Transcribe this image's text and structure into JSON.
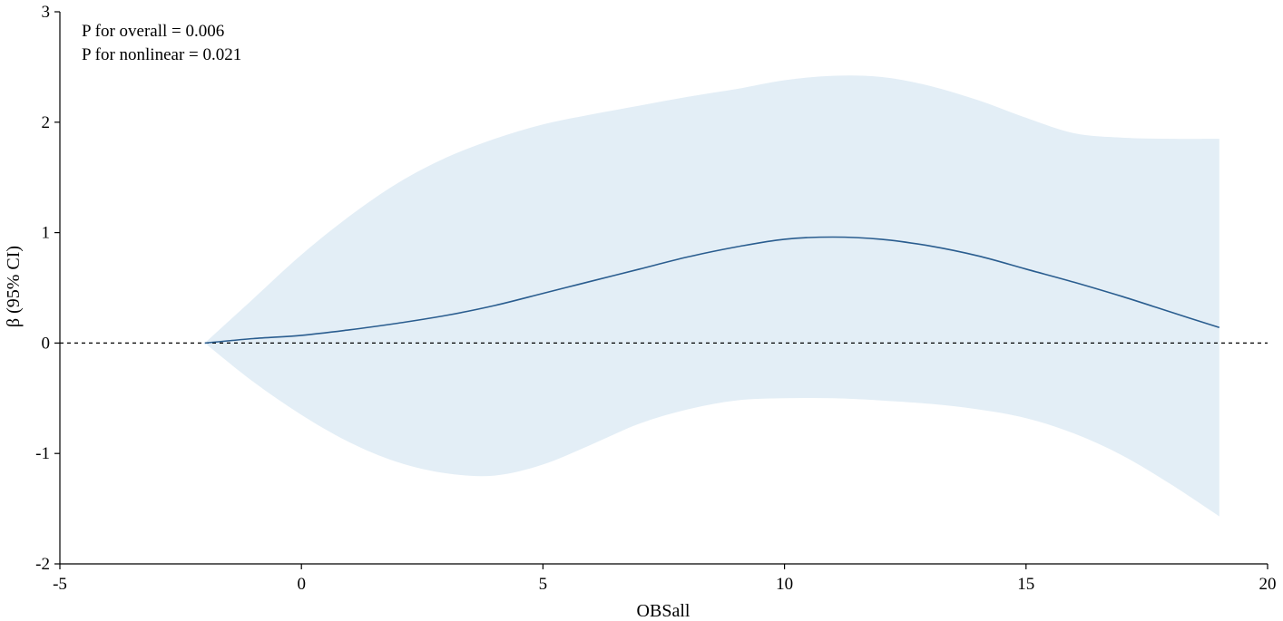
{
  "chart_data": {
    "type": "line",
    "xlabel": "OBSall",
    "ylabel": "β (95% CI)",
    "xlim": [
      -5,
      20
    ],
    "ylim": [
      -2,
      3
    ],
    "xticks": [
      -5,
      0,
      5,
      10,
      15,
      20
    ],
    "yticks": [
      -2,
      -1,
      0,
      1,
      2,
      3
    ],
    "xtick_labels": [
      "-5",
      "0",
      "5",
      "10",
      "15",
      "20"
    ],
    "ytick_labels": [
      "-2",
      "-1",
      "0",
      "1",
      "2",
      "3"
    ],
    "annotations": [
      "P for overall = 0.006",
      "P for nonlinear = 0.021"
    ],
    "reference_line": {
      "y": 0,
      "style": "dashed"
    },
    "grid": false,
    "colors": {
      "line": "#2a5d8f",
      "band": "#e3eef6",
      "reference": "#000000"
    },
    "series": [
      {
        "x": [
          -2,
          -1,
          0,
          1,
          2,
          3,
          4,
          5,
          6,
          7,
          8,
          9,
          10,
          11,
          12,
          13,
          14,
          15,
          16,
          17,
          18,
          19
        ],
        "values": [
          0,
          0.04,
          0.07,
          0.12,
          0.18,
          0.25,
          0.34,
          0.45,
          0.56,
          0.67,
          0.78,
          0.87,
          0.94,
          0.96,
          0.94,
          0.88,
          0.79,
          0.67,
          0.55,
          0.42,
          0.28,
          0.14
        ],
        "lower": [
          0,
          -0.35,
          -0.65,
          -0.9,
          -1.08,
          -1.18,
          -1.2,
          -1.1,
          -0.92,
          -0.73,
          -0.6,
          -0.52,
          -0.5,
          -0.5,
          -0.52,
          -0.55,
          -0.6,
          -0.68,
          -0.82,
          -1.02,
          -1.28,
          -1.57
        ],
        "upper": [
          0,
          0.4,
          0.8,
          1.15,
          1.45,
          1.68,
          1.85,
          1.98,
          2.07,
          2.15,
          2.23,
          2.3,
          2.38,
          2.42,
          2.41,
          2.33,
          2.2,
          2.04,
          1.9,
          1.86,
          1.85,
          1.85
        ]
      }
    ]
  }
}
